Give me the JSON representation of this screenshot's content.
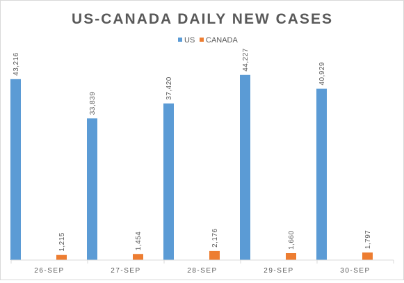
{
  "chart_data": {
    "type": "bar",
    "title": "US-CANADA DAILY NEW CASES",
    "categories": [
      "26-SEP",
      "27-SEP",
      "28-SEP",
      "29-SEP",
      "30-SEP"
    ],
    "series": [
      {
        "name": "US",
        "color": "#5b9bd5",
        "values": [
          43216,
          33839,
          37420,
          44227,
          40929
        ],
        "labels": [
          "43,216",
          "33,839",
          "37,420",
          "44,227",
          "40,929"
        ]
      },
      {
        "name": "CANADA",
        "color": "#ed7d31",
        "values": [
          1215,
          1454,
          2176,
          1660,
          1797
        ],
        "labels": [
          "1,215",
          "1,454",
          "2,176",
          "1,660",
          "1,797"
        ]
      }
    ],
    "xlabel": "",
    "ylabel": "",
    "ylim": [
      0,
      50000
    ],
    "grid": false,
    "legend": "top-center"
  }
}
